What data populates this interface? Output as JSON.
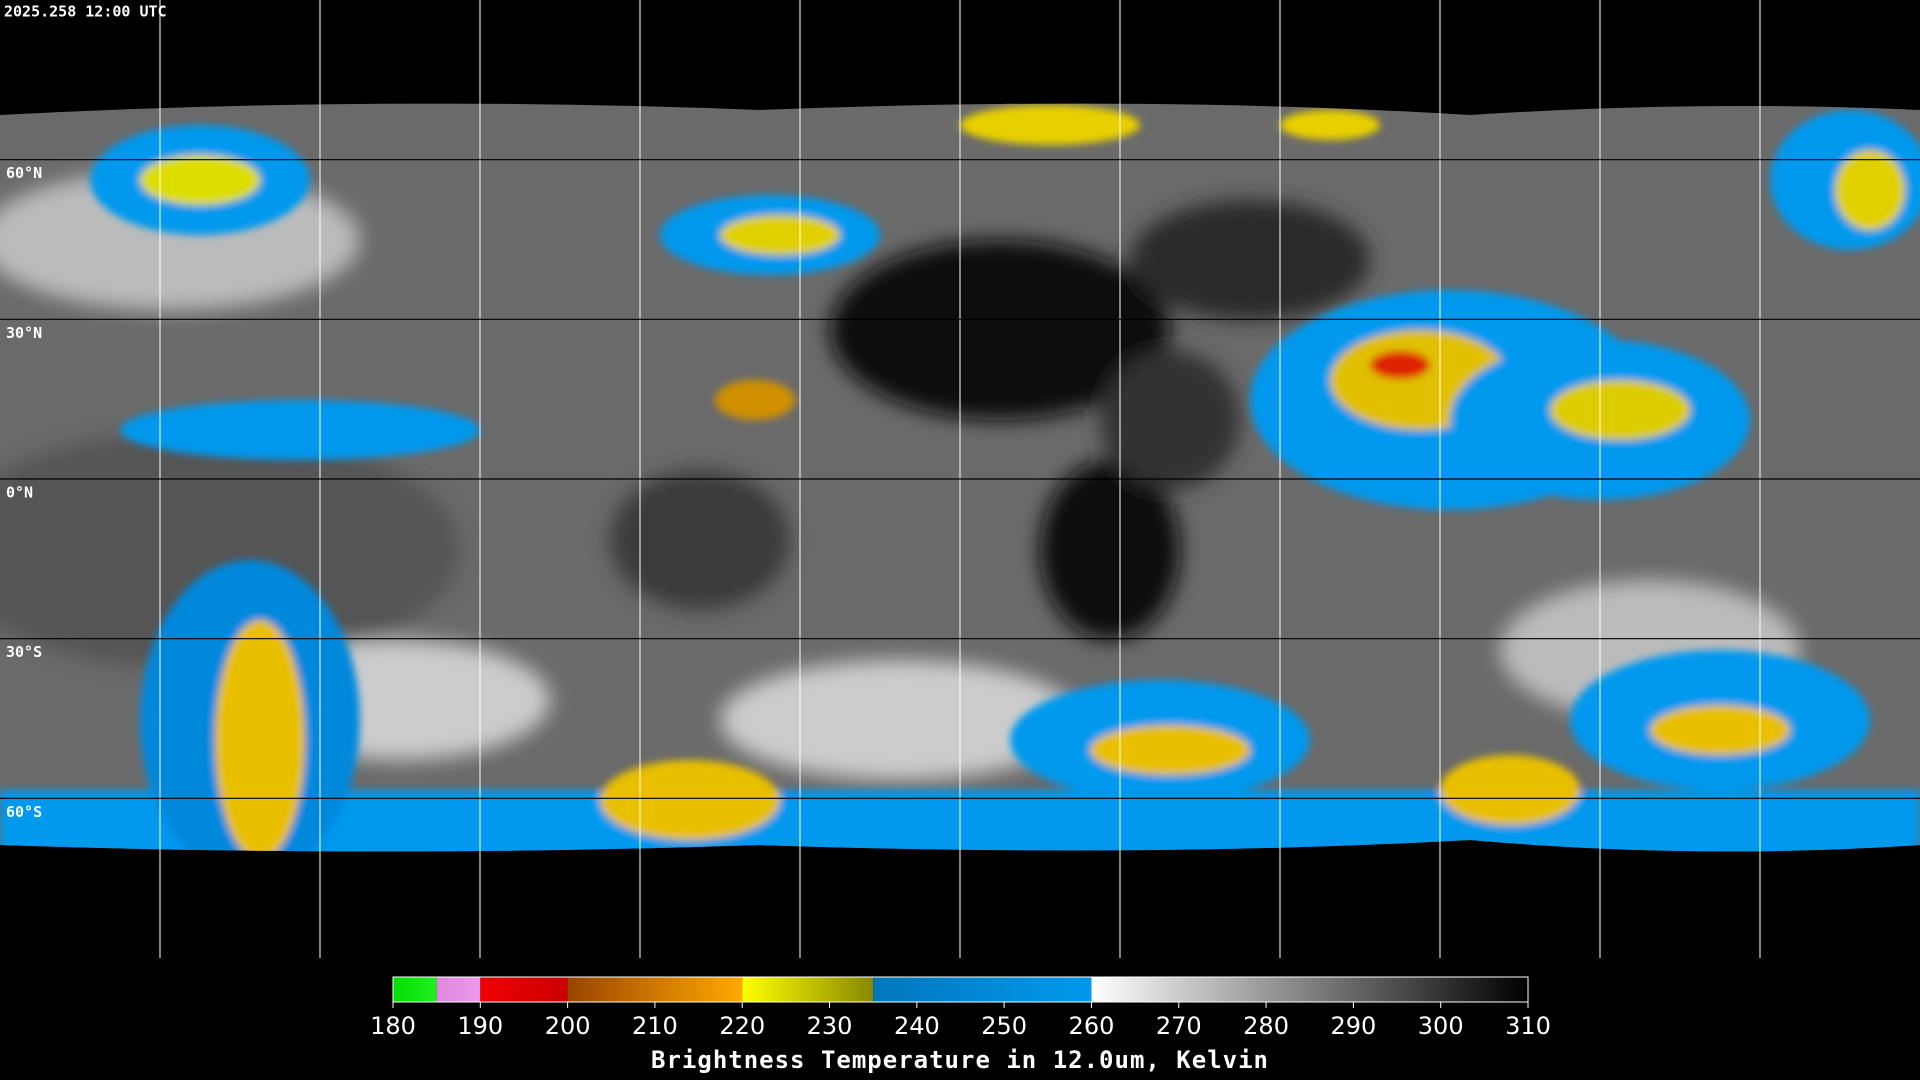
{
  "header": {
    "timestamp": "2025.258 12:00 UTC"
  },
  "map": {
    "latitude_labels": [
      "60°N",
      "30°N",
      "0°N",
      "30°S",
      "60°S"
    ]
  },
  "colorbar": {
    "title": "Brightness Temperature in 12.0um, Kelvin",
    "range": [
      180,
      310
    ],
    "ticks": [
      180,
      190,
      200,
      210,
      220,
      230,
      240,
      250,
      260,
      270,
      280,
      290,
      300,
      310
    ],
    "segments": [
      {
        "from": 180,
        "to": 185,
        "colors": [
          "#00dd00",
          "#22ee22"
        ]
      },
      {
        "from": 185,
        "to": 190,
        "colors": [
          "#dd88dd",
          "#ee99ee"
        ]
      },
      {
        "from": 190,
        "to": 200,
        "colors": [
          "#ee0000",
          "#cc0000"
        ]
      },
      {
        "from": 200,
        "to": 220,
        "colors": [
          "#994400",
          "#ffaa00"
        ]
      },
      {
        "from": 220,
        "to": 235,
        "colors": [
          "#ffff00",
          "#888800"
        ]
      },
      {
        "from": 235,
        "to": 260,
        "colors": [
          "#0077bb",
          "#0099ee"
        ]
      },
      {
        "from": 260,
        "to": 310,
        "colors": [
          "#ffffff",
          "#000000"
        ]
      }
    ]
  }
}
